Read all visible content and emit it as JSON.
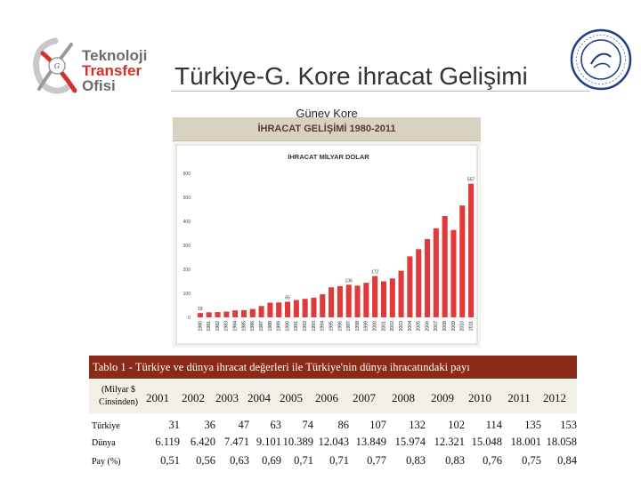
{
  "header": {
    "logo_lines": [
      "Teknoloji",
      "Transfer",
      "Ofisi"
    ],
    "title": "Türkiye-G. Kore ihracat Gelişimi"
  },
  "chart_caption": "Güney Kore",
  "chart_banner": "İHRACAT GELİŞİMİ 1980-2011",
  "chart_data": {
    "type": "bar",
    "title": "İHRACAT MİLYAR DOLAR",
    "categories": [
      "1980",
      "1981",
      "1982",
      "1983",
      "1984",
      "1985",
      "1986",
      "1987",
      "1988",
      "1989",
      "1990",
      "1991",
      "1992",
      "1993",
      "1994",
      "1995",
      "1996",
      "1997",
      "1998",
      "1999",
      "2000",
      "2001",
      "2002",
      "2003",
      "2004",
      "2005",
      "2006",
      "2007",
      "2008",
      "2009",
      "2010",
      "2011"
    ],
    "values": [
      18,
      21,
      22,
      24,
      29,
      30,
      35,
      47,
      61,
      62,
      65,
      72,
      77,
      82,
      96,
      125,
      130,
      136,
      132,
      144,
      172,
      150,
      162,
      194,
      254,
      284,
      326,
      371,
      422,
      364,
      466,
      557
    ],
    "labeled_values": {
      "1980": "18",
      "1990": "65",
      "1997": "136",
      "2000": "172",
      "2011": "557"
    },
    "ylim": [
      0,
      600
    ],
    "yticks": [
      0,
      100,
      200,
      300,
      400,
      500,
      600
    ],
    "bar_color": "#e03a3a",
    "grid": false
  },
  "table": {
    "caption": "Tablo 1 - Türkiye ve dünya ihracat değerleri ile Türkiye'nin dünya ihracatındaki payı",
    "unit_label": "(Milyar $ Cinsinden)",
    "years": [
      "2001",
      "2002",
      "2003",
      "2004",
      "2005",
      "2006",
      "2007",
      "2008",
      "2009",
      "2010",
      "2011",
      "2012"
    ],
    "rows": [
      {
        "label": "Türkiye",
        "values": [
          "31",
          "36",
          "47",
          "63",
          "74",
          "86",
          "107",
          "132",
          "102",
          "114",
          "135",
          "153"
        ]
      },
      {
        "label": "Dünya",
        "values": [
          "6.119",
          "6.420",
          "7.471",
          "9.101",
          "10.389",
          "12.043",
          "13.849",
          "15.974",
          "12.321",
          "15.048",
          "18.001",
          "18.058"
        ]
      },
      {
        "label": "Pay (%)",
        "values": [
          "0,51",
          "0,56",
          "0,63",
          "0,69",
          "0,71",
          "0,71",
          "0,77",
          "0,83",
          "0,83",
          "0,76",
          "0,75",
          "0,84"
        ]
      }
    ]
  },
  "colors": {
    "title": "#333333",
    "table_header_bg": "#8a2a18",
    "logo_red": "#d2322b",
    "seal_blue": "#1d3e8c"
  }
}
